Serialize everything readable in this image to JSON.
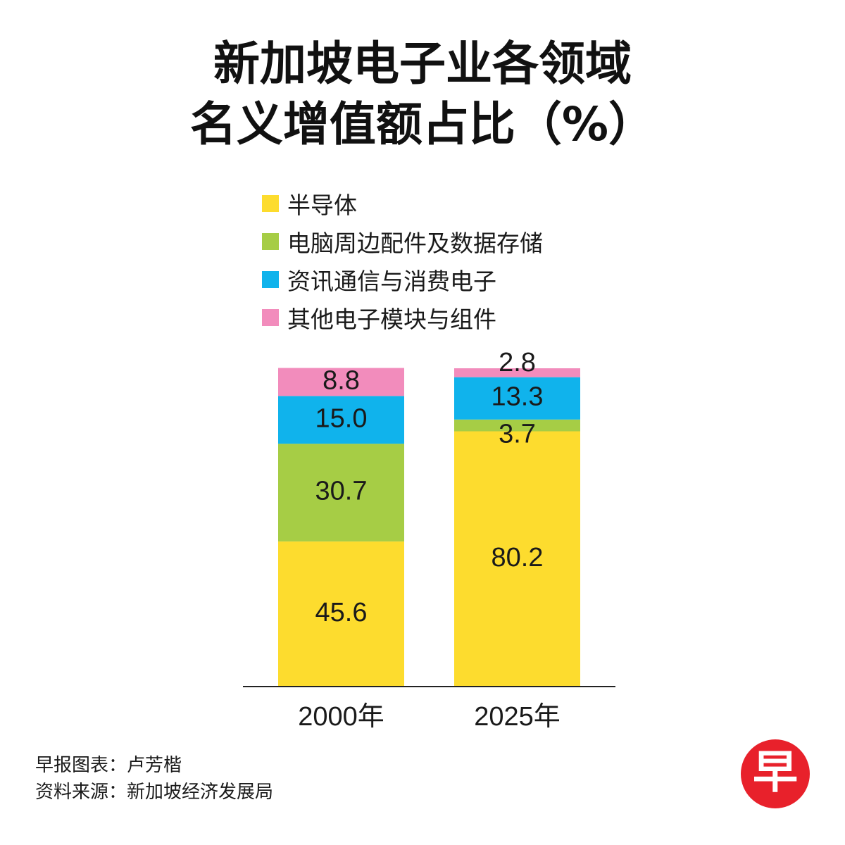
{
  "title": {
    "line1": "新加坡电子业各领域",
    "line2": "名义增值额占比（%）"
  },
  "legend": [
    {
      "label": "半导体",
      "color": "#fddc2e"
    },
    {
      "label": "电脑周边配件及数据存储",
      "color": "#a6cd45"
    },
    {
      "label": "资讯通信与消费电子",
      "color": "#10b3ec"
    },
    {
      "label": "其他电子模块与组件",
      "color": "#f28cbc"
    }
  ],
  "chart_data": {
    "type": "bar",
    "stacked": true,
    "categories": [
      "2000年",
      "2025年"
    ],
    "series": [
      {
        "name": "半导体",
        "color": "#fddc2e",
        "values": [
          45.6,
          80.2
        ],
        "labels": [
          "45.6",
          "80.2"
        ]
      },
      {
        "name": "电脑周边配件及数据存储",
        "color": "#a6cd45",
        "values": [
          30.7,
          3.7
        ],
        "labels": [
          "30.7",
          "3.7"
        ]
      },
      {
        "name": "资讯通信与消费电子",
        "color": "#10b3ec",
        "values": [
          15.0,
          13.3
        ],
        "labels": [
          "15.0",
          "13.3"
        ]
      },
      {
        "name": "其他电子模块与组件",
        "color": "#f28cbc",
        "values": [
          8.8,
          2.8
        ],
        "labels": [
          "8.8",
          "2.8"
        ]
      }
    ],
    "ylim": [
      0,
      100
    ],
    "grid": false,
    "legend_position": "top"
  },
  "footer": {
    "credit": "早报图表：卢芳楷",
    "source": "资料来源：新加坡经济发展局"
  },
  "logo": {
    "text": "早",
    "color": "#e8212b"
  }
}
